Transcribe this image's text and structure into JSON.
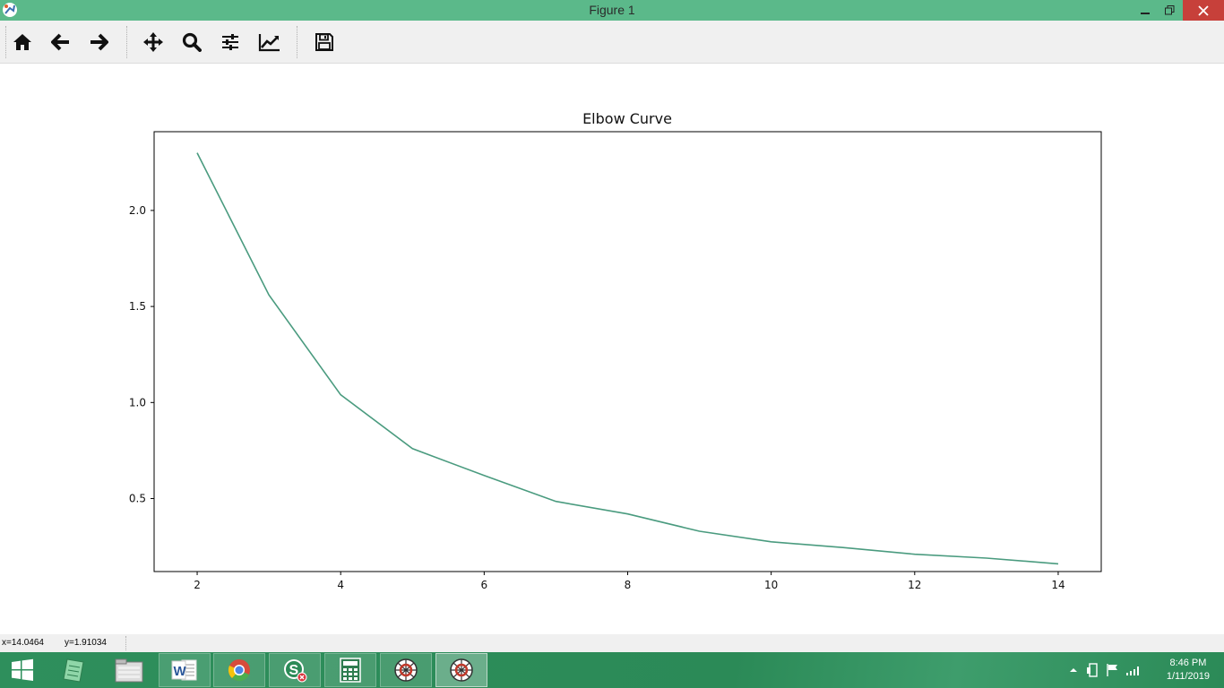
{
  "window": {
    "title": "Figure 1",
    "controls": [
      "minimize-icon",
      "restore-icon",
      "close-icon"
    ]
  },
  "toolbar": {
    "buttons": [
      {
        "name": "home",
        "icon": "home-icon"
      },
      {
        "name": "back",
        "icon": "arrow-left-icon"
      },
      {
        "name": "forward",
        "icon": "arrow-right-icon"
      },
      {
        "name": "pan",
        "icon": "move-icon"
      },
      {
        "name": "zoom",
        "icon": "magnifier-icon"
      },
      {
        "name": "subplots",
        "icon": "sliders-icon"
      },
      {
        "name": "edit-curves",
        "icon": "chart-line-icon"
      },
      {
        "name": "save",
        "icon": "floppy-icon"
      }
    ]
  },
  "chart_data": {
    "type": "line",
    "title": "Elbow Curve",
    "xlabel": "",
    "ylabel": "",
    "x": [
      2,
      3,
      4,
      5,
      6,
      7,
      8,
      9,
      10,
      11,
      12,
      13,
      14
    ],
    "series": [
      {
        "values": [
          2.3,
          1.56,
          1.04,
          0.76,
          0.62,
          0.485,
          0.42,
          0.33,
          0.275,
          0.245,
          0.21,
          0.19,
          0.16
        ]
      }
    ],
    "xlim": [
      1.4,
      14.6
    ],
    "ylim": [
      0.12,
      2.41
    ],
    "xticks": [
      2,
      4,
      6,
      8,
      10,
      12,
      14
    ],
    "yticks": [
      0.5,
      1.0,
      1.5,
      2.0
    ],
    "ytick_labels": [
      "0.5",
      "1.0",
      "1.5",
      "2.0"
    ],
    "line_color": "#4a9b7f",
    "grid": false,
    "legend": "none"
  },
  "status": {
    "x_readout": "x=14.0464",
    "y_readout": "y=1.91034"
  },
  "taskbar": {
    "items": [
      {
        "name": "start",
        "icon": "windows-logo-icon"
      },
      {
        "name": "notepad",
        "icon": "notepad-icon"
      },
      {
        "name": "file-explorer",
        "icon": "folder-icon"
      },
      {
        "name": "word",
        "icon": "word-icon"
      },
      {
        "name": "chrome",
        "icon": "chrome-icon"
      },
      {
        "name": "skype",
        "icon": "skype-icon"
      },
      {
        "name": "calculator",
        "icon": "calculator-icon"
      },
      {
        "name": "app-a",
        "icon": "web-icon"
      },
      {
        "name": "app-b",
        "icon": "web-icon"
      }
    ],
    "clock_time": "8:46 PM",
    "clock_date": "1/11/2019",
    "accent_color": "#2b8a57"
  }
}
